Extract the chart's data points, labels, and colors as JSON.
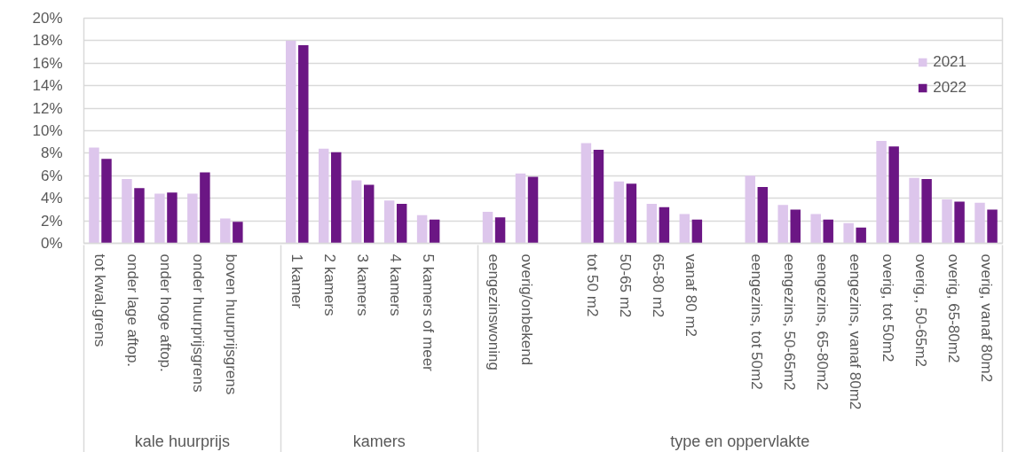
{
  "chart_data": {
    "type": "bar",
    "categories": [
      "tot kwal.grens",
      "onder lage aftop.",
      "onder hoge aftop.",
      "onder huurprijsgrens",
      "boven huurprijsgrens",
      null,
      "1 kamer",
      "2 kamers",
      "3 kamers",
      "4 kamers",
      "5 kamers of meer",
      null,
      "eengezinswoning",
      "overig/onbekend",
      null,
      "tot 50 m2",
      "50-65 m2",
      "65-80 m2",
      "vanaf 80 m2",
      null,
      "eengezins, tot 50m2",
      "eengezins, 50-65m2",
      "eengezins, 65-80m2",
      "eengezins, vanaf 80m2",
      "overig, tot 50m2",
      "overig., 50-65m2",
      "overig, 65-80m2",
      "overig, vanaf 80m2"
    ],
    "series": [
      {
        "name": "2021",
        "color": "#ddc6ec",
        "values": [
          8.5,
          5.7,
          4.4,
          4.4,
          2.2,
          null,
          18.0,
          8.4,
          5.6,
          3.8,
          2.5,
          null,
          2.8,
          6.2,
          null,
          8.9,
          5.5,
          3.5,
          2.6,
          null,
          6.0,
          3.4,
          2.6,
          1.8,
          9.1,
          5.8,
          3.9,
          3.6
        ]
      },
      {
        "name": "2022",
        "color": "#6b1684",
        "values": [
          7.5,
          4.9,
          4.5,
          6.3,
          1.9,
          null,
          17.6,
          8.1,
          5.2,
          3.5,
          2.1,
          null,
          2.3,
          5.9,
          null,
          8.3,
          5.3,
          3.2,
          2.1,
          null,
          5.0,
          3.0,
          2.1,
          1.4,
          8.6,
          5.7,
          3.7,
          3.0
        ]
      }
    ],
    "ylim": [
      0,
      20
    ],
    "yticks": [
      {
        "value": 0,
        "label": "0%"
      },
      {
        "value": 2,
        "label": "2%"
      },
      {
        "value": 4,
        "label": "4%"
      },
      {
        "value": 6,
        "label": "6%"
      },
      {
        "value": 8,
        "label": "8%"
      },
      {
        "value": 10,
        "label": "10%"
      },
      {
        "value": 12,
        "label": "12%"
      },
      {
        "value": 14,
        "label": "14%"
      },
      {
        "value": 16,
        "label": "16%"
      },
      {
        "value": 18,
        "label": "18%"
      },
      {
        "value": 20,
        "label": "20%"
      }
    ],
    "annotations": [
      "kale huurprijs",
      "kamers",
      "type en oppervlakte"
    ],
    "grid": "y",
    "legend": "top right"
  }
}
